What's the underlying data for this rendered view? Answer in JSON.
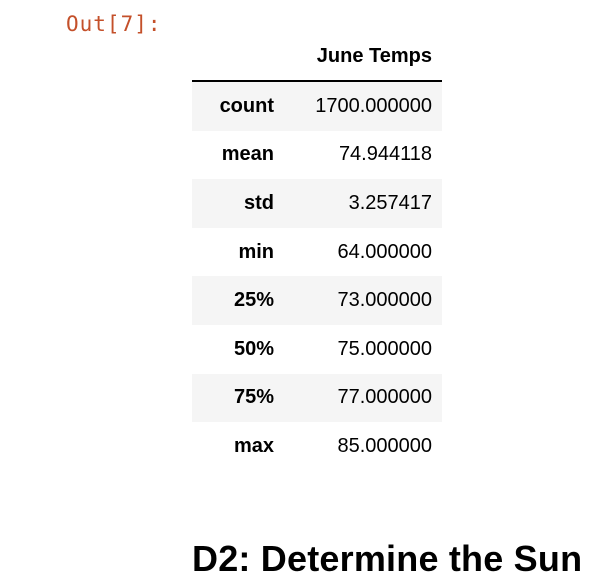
{
  "output_prompt": "Out[7]:",
  "table": {
    "column_header": "June Temps",
    "rows": [
      {
        "label": "count",
        "value": "1700.000000"
      },
      {
        "label": "mean",
        "value": "74.944118"
      },
      {
        "label": "std",
        "value": "3.257417"
      },
      {
        "label": "min",
        "value": "64.000000"
      },
      {
        "label": "25%",
        "value": "73.000000"
      },
      {
        "label": "50%",
        "value": "75.000000"
      },
      {
        "label": "75%",
        "value": "77.000000"
      },
      {
        "label": "max",
        "value": "85.000000"
      }
    ]
  },
  "next_heading": "D2: Determine the Sun"
}
